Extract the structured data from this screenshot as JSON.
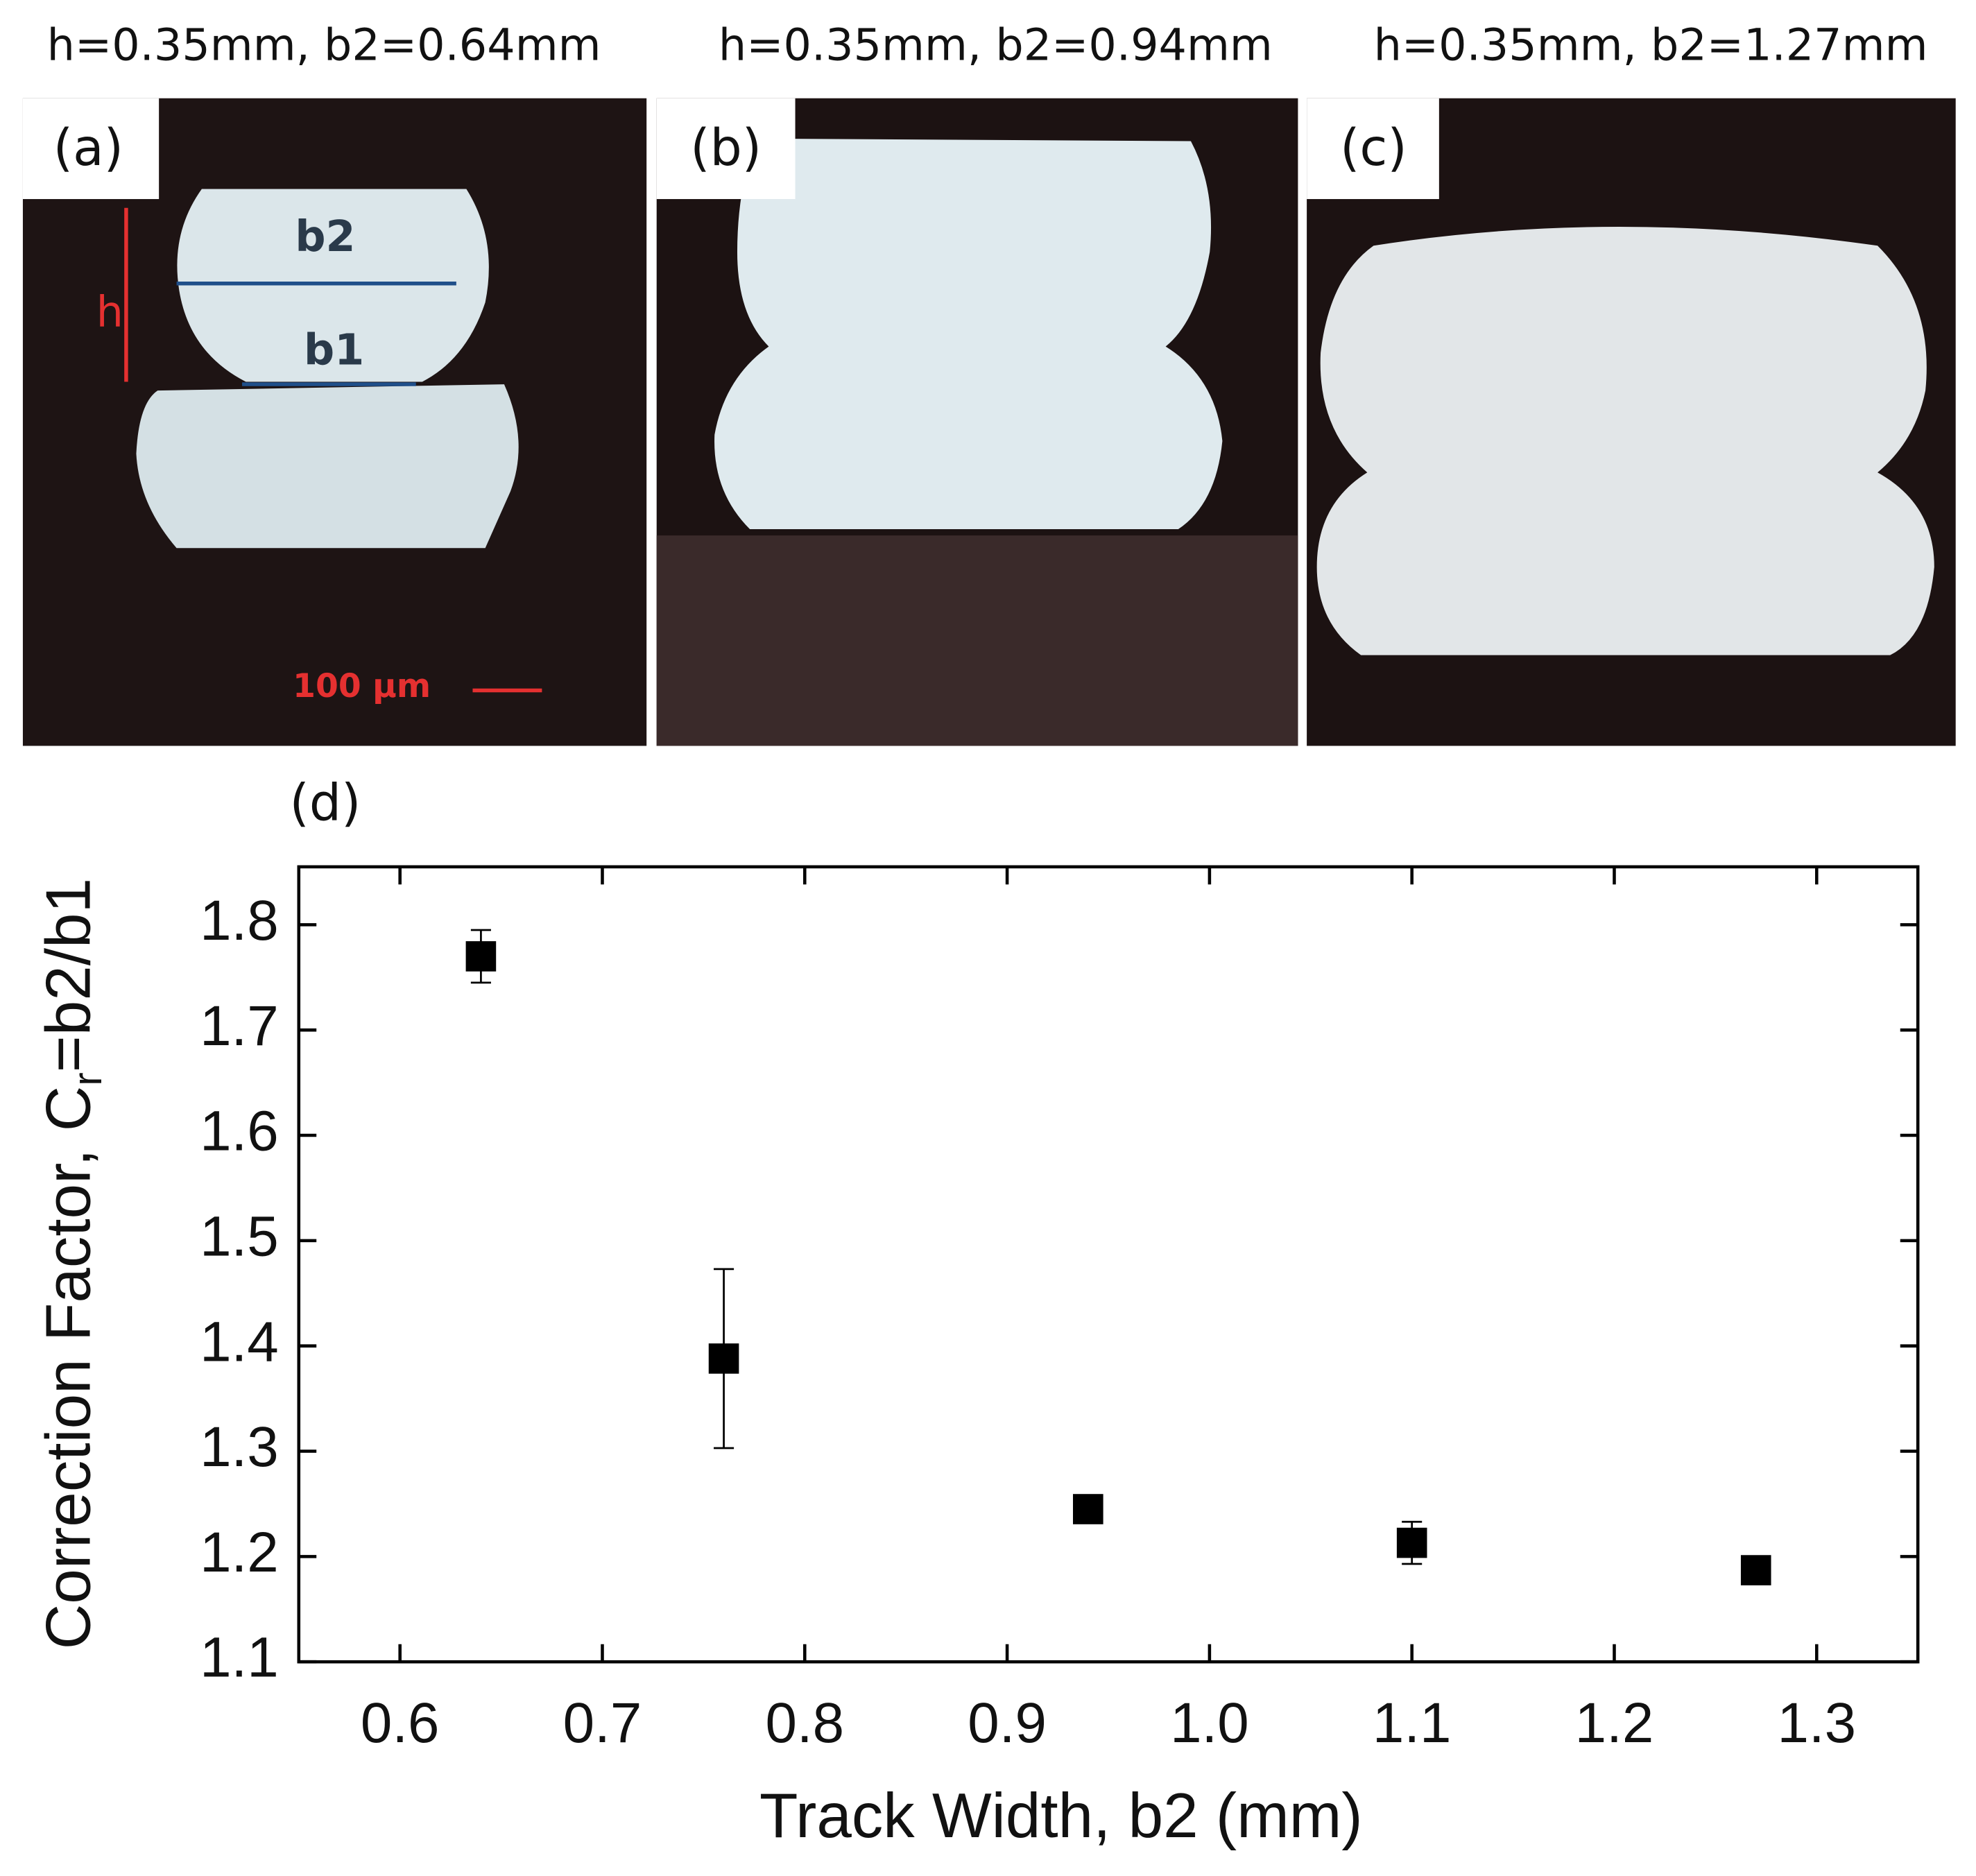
{
  "panels": [
    {
      "title": "h=0.35mm, b2=0.64mm",
      "label": "(a)"
    },
    {
      "title": "h=0.35mm, b2=0.94mm",
      "label": "(b)"
    },
    {
      "title": "h=0.35mm, b2=1.27mm",
      "label": "(c)"
    }
  ],
  "annotations": {
    "b2": "b2",
    "b1": "b1",
    "h": "h",
    "scale_bar": "100 µm"
  },
  "chart_data": {
    "type": "scatter",
    "panel_label": "(d)",
    "xlabel": "Track Width, b2 (mm)",
    "ylabel": {
      "main": "Correction Factor, C",
      "sub": "r",
      "rest": "=b2/b1"
    },
    "x": [
      0.64,
      0.76,
      0.94,
      1.1,
      1.27
    ],
    "y": [
      1.77,
      1.388,
      1.245,
      1.213,
      1.187
    ],
    "errors": [
      0.025,
      0.085,
      0.005,
      0.02,
      0.005
    ],
    "color": "#000000",
    "xlim": [
      0.55,
      1.35
    ],
    "ylim": [
      1.1,
      1.855
    ],
    "xticks": [
      0.6,
      0.7,
      0.8,
      0.9,
      {
        "value": 1.0,
        "label": "1.0"
      },
      1.1,
      1.2,
      1.3
    ],
    "yticks": [
      1.1,
      1.2,
      1.3,
      1.4,
      1.5,
      1.6,
      1.7,
      1.8
    ]
  }
}
